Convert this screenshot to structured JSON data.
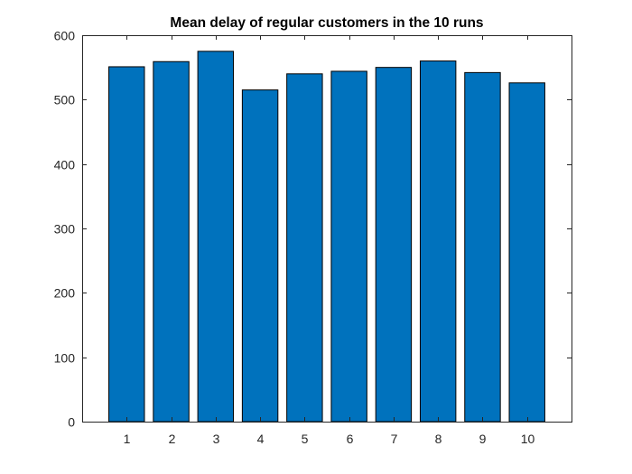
{
  "chart_data": {
    "type": "bar",
    "title": "Mean delay of regular customers in the 10 runs",
    "xlabel": "",
    "ylabel": "",
    "categories": [
      "1",
      "2",
      "3",
      "4",
      "5",
      "6",
      "7",
      "8",
      "9",
      "10"
    ],
    "values": [
      551,
      559,
      575,
      515,
      540,
      544,
      550,
      560,
      542,
      526
    ],
    "ylim": [
      0,
      600
    ],
    "yticks": [
      0,
      100,
      200,
      300,
      400,
      500,
      600
    ],
    "grid": false,
    "legend": "none",
    "bar_color": "#0072bd",
    "bar_edge_color": "#000000",
    "axis_color": "#262626"
  }
}
